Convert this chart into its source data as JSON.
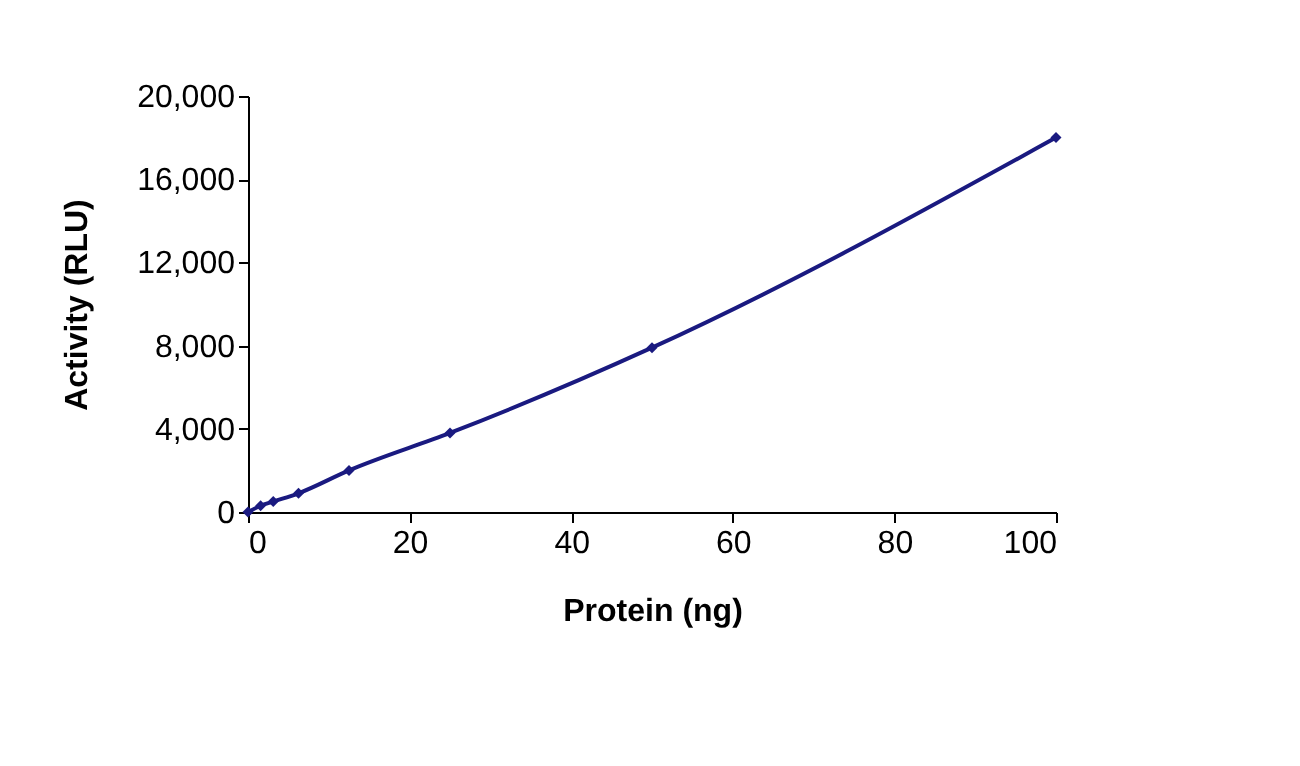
{
  "chart_data": {
    "type": "line",
    "xlabel": "Protein (ng)",
    "ylabel": "Activity (RLU)",
    "x": [
      0,
      1.56,
      3.125,
      6.25,
      12.5,
      25,
      50,
      100
    ],
    "series": [
      {
        "color": "#1a1a80",
        "values": [
          0,
          300,
          500,
          900,
          2000,
          3800,
          7900,
          18000
        ]
      }
    ],
    "xlim": [
      0,
      100
    ],
    "xticks": [
      0,
      20,
      40,
      60,
      80,
      100
    ],
    "ylim": [
      0,
      20000
    ],
    "yticks": [
      0,
      {
        "value": 4000,
        "label": "4,000"
      },
      {
        "value": 8000,
        "label": "8,000"
      },
      {
        "value": 12000,
        "label": "12,000"
      },
      {
        "value": 16000,
        "label": "16,000"
      },
      {
        "value": 20000,
        "label": "20,000"
      }
    ],
    "grid": false,
    "marker": "diamond",
    "line_style": "solid"
  }
}
